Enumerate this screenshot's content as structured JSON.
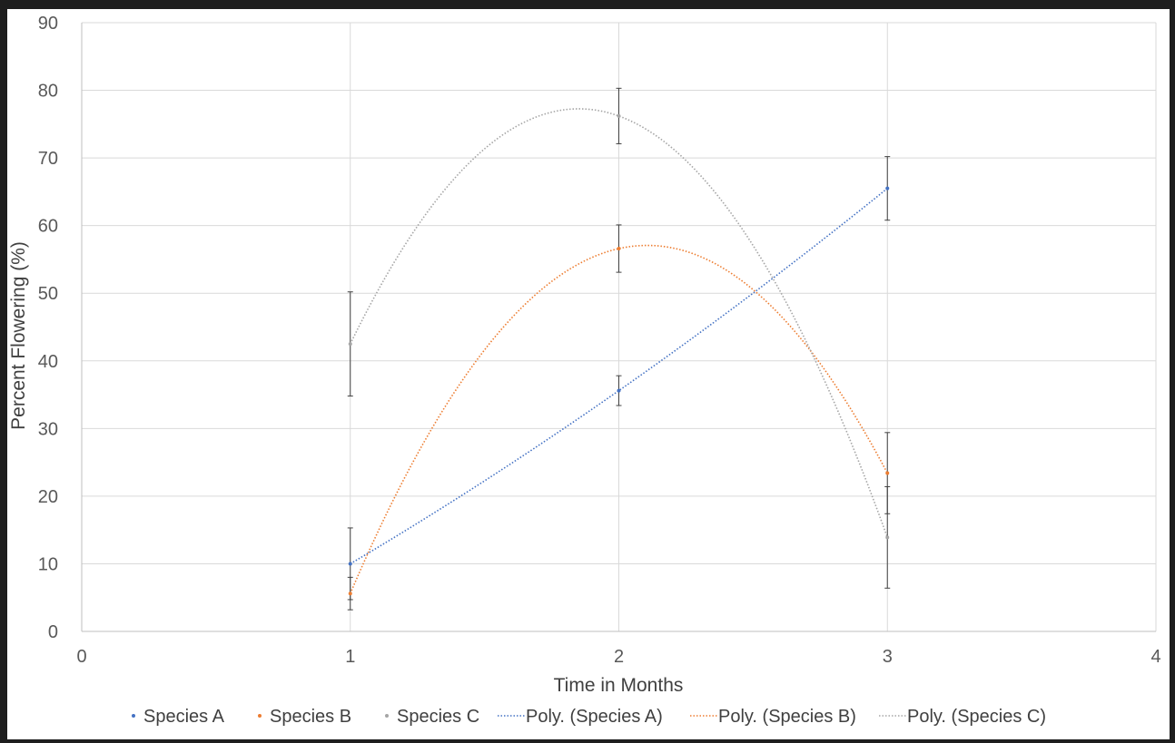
{
  "chart_data": {
    "type": "scatter",
    "title": "",
    "xlabel": "Time in Months",
    "ylabel": "Percent Flowering (%)",
    "xlim": [
      0,
      4
    ],
    "ylim": [
      0,
      90
    ],
    "x_ticks": [
      0,
      1,
      2,
      3,
      4
    ],
    "y_ticks": [
      0,
      10,
      20,
      30,
      40,
      50,
      60,
      70,
      80,
      90
    ],
    "grid": true,
    "legend_position": "bottom",
    "series": [
      {
        "name": "Species A",
        "color": "#4472C4",
        "x": [
          1,
          2,
          3
        ],
        "y": [
          10,
          35.6,
          65.5
        ],
        "error": [
          5.3,
          2.2,
          4.7
        ]
      },
      {
        "name": "Species B",
        "color": "#ED7D31",
        "x": [
          1,
          2,
          3
        ],
        "y": [
          5.6,
          56.6,
          23.4
        ],
        "error": [
          2.4,
          3.5,
          6.0
        ]
      },
      {
        "name": "Species C",
        "color": "#A5A5A5",
        "x": [
          1,
          2,
          3
        ],
        "y": [
          42.5,
          76.2,
          13.9
        ],
        "error": [
          7.7,
          4.1,
          7.5
        ]
      }
    ],
    "trendlines": [
      {
        "name": "Poly. (Species A)",
        "of": "Species A",
        "type": "polynomial",
        "order": 2
      },
      {
        "name": "Poly. (Species B)",
        "of": "Species B",
        "type": "polynomial",
        "order": 2
      },
      {
        "name": "Poly. (Species C)",
        "of": "Species C",
        "type": "polynomial",
        "order": 2
      }
    ]
  }
}
